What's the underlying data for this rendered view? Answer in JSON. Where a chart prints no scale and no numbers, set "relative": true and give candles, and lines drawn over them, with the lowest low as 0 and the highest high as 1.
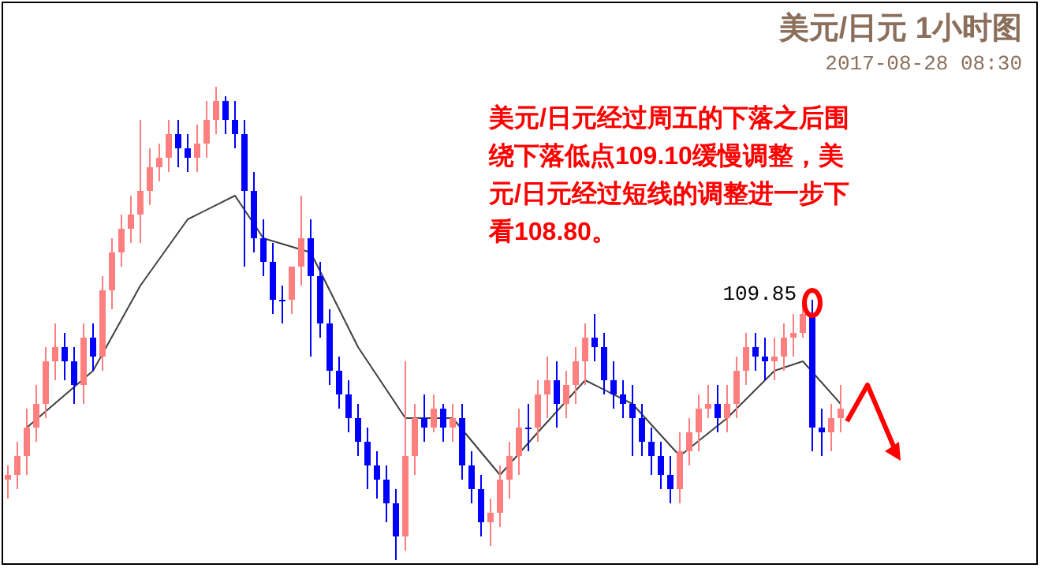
{
  "chart_data": {
    "type": "candlestick",
    "title": "美元/日元 1小时图",
    "subtitle": "2017-08-28 08:30",
    "relative": true,
    "annotations": [
      "美元/日元经过周五的下落之后围绕下落低点109.10缓慢调整，美元/日元经过短线的调整进一步下看108.80。",
      "109.85"
    ],
    "categories": [
      null,
      null,
      null,
      null,
      null,
      null,
      null,
      null,
      null,
      null,
      null,
      null,
      null,
      null,
      null,
      null,
      null,
      null,
      null,
      null,
      null,
      null,
      null,
      null,
      null,
      null,
      null,
      null,
      null,
      null,
      null,
      null,
      null,
      null,
      null,
      null,
      null,
      null,
      null,
      null,
      null,
      null,
      null,
      null,
      null,
      null,
      null,
      null,
      null,
      null,
      null,
      null,
      null,
      null,
      null,
      null,
      null,
      null,
      null,
      null,
      null,
      null,
      null,
      null,
      null,
      null,
      null,
      null,
      null,
      null,
      null,
      null,
      null,
      null,
      null,
      null,
      null,
      null,
      null,
      null,
      null,
      null,
      null,
      null,
      null,
      null,
      null,
      null,
      null
    ],
    "ohlc": [
      [
        0.17,
        0.2,
        0.13,
        0.18
      ],
      [
        0.18,
        0.25,
        0.15,
        0.22
      ],
      [
        0.22,
        0.32,
        0.18,
        0.28
      ],
      [
        0.28,
        0.37,
        0.25,
        0.33
      ],
      [
        0.33,
        0.45,
        0.3,
        0.42
      ],
      [
        0.42,
        0.5,
        0.38,
        0.45
      ],
      [
        0.45,
        0.48,
        0.38,
        0.42
      ],
      [
        0.42,
        0.45,
        0.33,
        0.37
      ],
      [
        0.37,
        0.5,
        0.33,
        0.47
      ],
      [
        0.47,
        0.5,
        0.4,
        0.43
      ],
      [
        0.43,
        0.6,
        0.4,
        0.57
      ],
      [
        0.57,
        0.68,
        0.53,
        0.65
      ],
      [
        0.65,
        0.73,
        0.62,
        0.7
      ],
      [
        0.7,
        0.77,
        0.67,
        0.73
      ],
      [
        0.73,
        0.93,
        0.67,
        0.78
      ],
      [
        0.78,
        0.87,
        0.75,
        0.83
      ],
      [
        0.83,
        0.88,
        0.8,
        0.85
      ],
      [
        0.85,
        0.93,
        0.82,
        0.9
      ],
      [
        0.9,
        0.93,
        0.83,
        0.87
      ],
      [
        0.87,
        0.9,
        0.82,
        0.85
      ],
      [
        0.85,
        0.92,
        0.82,
        0.88
      ],
      [
        0.88,
        0.97,
        0.85,
        0.93
      ],
      [
        0.93,
        1.0,
        0.9,
        0.97
      ],
      [
        0.97,
        0.98,
        0.9,
        0.93
      ],
      [
        0.93,
        0.97,
        0.87,
        0.9
      ],
      [
        0.9,
        0.93,
        0.62,
        0.78
      ],
      [
        0.78,
        0.82,
        0.65,
        0.68
      ],
      [
        0.68,
        0.72,
        0.6,
        0.63
      ],
      [
        0.63,
        0.67,
        0.52,
        0.55
      ],
      [
        0.55,
        0.58,
        0.5,
        0.55
      ],
      [
        0.55,
        0.62,
        0.52,
        0.62
      ],
      [
        0.62,
        0.77,
        0.58,
        0.68
      ],
      [
        0.68,
        0.72,
        0.43,
        0.6
      ],
      [
        0.6,
        0.63,
        0.47,
        0.5
      ],
      [
        0.5,
        0.53,
        0.37,
        0.4
      ],
      [
        0.4,
        0.43,
        0.32,
        0.35
      ],
      [
        0.35,
        0.38,
        0.27,
        0.3
      ],
      [
        0.3,
        0.33,
        0.22,
        0.25
      ],
      [
        0.25,
        0.28,
        0.15,
        0.2
      ],
      [
        0.2,
        0.23,
        0.13,
        0.17
      ],
      [
        0.17,
        0.2,
        0.08,
        0.12
      ],
      [
        0.12,
        0.15,
        0.0,
        0.05
      ],
      [
        0.05,
        0.42,
        0.02,
        0.22
      ],
      [
        0.22,
        0.33,
        0.18,
        0.3
      ],
      [
        0.3,
        0.35,
        0.25,
        0.28
      ],
      [
        0.28,
        0.35,
        0.27,
        0.32
      ],
      [
        0.32,
        0.33,
        0.25,
        0.28
      ],
      [
        0.28,
        0.33,
        0.25,
        0.3
      ],
      [
        0.3,
        0.33,
        0.17,
        0.2
      ],
      [
        0.2,
        0.23,
        0.12,
        0.15
      ],
      [
        0.15,
        0.18,
        0.05,
        0.08
      ],
      [
        0.08,
        0.13,
        0.03,
        0.1
      ],
      [
        0.1,
        0.2,
        0.07,
        0.17
      ],
      [
        0.17,
        0.25,
        0.13,
        0.22
      ],
      [
        0.22,
        0.32,
        0.18,
        0.28
      ],
      [
        0.28,
        0.33,
        0.23,
        0.28
      ],
      [
        0.28,
        0.38,
        0.25,
        0.35
      ],
      [
        0.35,
        0.43,
        0.3,
        0.38
      ],
      [
        0.38,
        0.42,
        0.28,
        0.33
      ],
      [
        0.33,
        0.4,
        0.3,
        0.37
      ],
      [
        0.37,
        0.45,
        0.33,
        0.42
      ],
      [
        0.42,
        0.5,
        0.37,
        0.47
      ],
      [
        0.47,
        0.52,
        0.42,
        0.45
      ],
      [
        0.45,
        0.48,
        0.35,
        0.38
      ],
      [
        0.38,
        0.42,
        0.32,
        0.35
      ],
      [
        0.35,
        0.38,
        0.3,
        0.33
      ],
      [
        0.33,
        0.37,
        0.22,
        0.3
      ],
      [
        0.3,
        0.33,
        0.22,
        0.25
      ],
      [
        0.25,
        0.28,
        0.18,
        0.22
      ],
      [
        0.22,
        0.25,
        0.15,
        0.18
      ],
      [
        0.18,
        0.22,
        0.12,
        0.15
      ],
      [
        0.15,
        0.27,
        0.12,
        0.23
      ],
      [
        0.23,
        0.3,
        0.2,
        0.27
      ],
      [
        0.27,
        0.35,
        0.23,
        0.32
      ],
      [
        0.32,
        0.37,
        0.3,
        0.33
      ],
      [
        0.33,
        0.37,
        0.27,
        0.3
      ],
      [
        0.3,
        0.37,
        0.27,
        0.33
      ],
      [
        0.33,
        0.43,
        0.3,
        0.4
      ],
      [
        0.4,
        0.48,
        0.37,
        0.45
      ],
      [
        0.45,
        0.48,
        0.4,
        0.43
      ],
      [
        0.43,
        0.47,
        0.38,
        0.42
      ],
      [
        0.42,
        0.47,
        0.38,
        0.43
      ],
      [
        0.43,
        0.5,
        0.4,
        0.47
      ],
      [
        0.47,
        0.52,
        0.43,
        0.48
      ],
      [
        0.48,
        0.54,
        0.47,
        0.52
      ],
      [
        0.52,
        0.55,
        0.23,
        0.28
      ],
      [
        0.28,
        0.32,
        0.22,
        0.27
      ],
      [
        0.27,
        0.33,
        0.23,
        0.3
      ],
      [
        0.3,
        0.37,
        0.27,
        0.32
      ]
    ],
    "colors": [
      "#ff7f7f",
      "#ff7f7f",
      "#ff7f7f",
      "#ff7f7f",
      "#ff7f7f",
      "#ff7f7f",
      "#0000ff",
      "#0000ff",
      "#ff7f7f",
      "#0000ff",
      "#ff7f7f",
      "#ff7f7f",
      "#ff7f7f",
      "#ff7f7f",
      "#ff7f7f",
      "#ff7f7f",
      "#ff7f7f",
      "#ff7f7f",
      "#0000ff",
      "#0000ff",
      "#ff7f7f",
      "#ff7f7f",
      "#ff7f7f",
      "#0000ff",
      "#0000ff",
      "#0000ff",
      "#0000ff",
      "#0000ff",
      "#0000ff",
      "#0000ff",
      "#ff7f7f",
      "#ff7f7f",
      "#0000ff",
      "#0000ff",
      "#0000ff",
      "#0000ff",
      "#0000ff",
      "#0000ff",
      "#0000ff",
      "#0000ff",
      "#0000ff",
      "#0000ff",
      "#ff7f7f",
      "#ff7f7f",
      "#0000ff",
      "#ff7f7f",
      "#0000ff",
      "#ff7f7f",
      "#0000ff",
      "#0000ff",
      "#0000ff",
      "#ff7f7f",
      "#ff7f7f",
      "#ff7f7f",
      "#ff7f7f",
      "#0000ff",
      "#ff7f7f",
      "#ff7f7f",
      "#0000ff",
      "#ff7f7f",
      "#ff7f7f",
      "#ff7f7f",
      "#0000ff",
      "#0000ff",
      "#0000ff",
      "#0000ff",
      "#0000ff",
      "#0000ff",
      "#0000ff",
      "#0000ff",
      "#0000ff",
      "#ff7f7f",
      "#ff7f7f",
      "#ff7f7f",
      "#ff7f7f",
      "#0000ff",
      "#ff7f7f",
      "#ff7f7f",
      "#ff7f7f",
      "#0000ff",
      "#0000ff",
      "#ff7f7f",
      "#ff7f7f",
      "#ff7f7f",
      "#ff7f7f",
      "#0000ff",
      "#0000ff",
      "#ff7f7f",
      "#ff7f7f"
    ],
    "series": [
      {
        "type": "line",
        "color": "#404040",
        "values": [
          null,
          null,
          0.28,
          null,
          null,
          null,
          null,
          null,
          null,
          0.4,
          null,
          null,
          null,
          null,
          0.58,
          null,
          null,
          null,
          null,
          0.72,
          null,
          null,
          null,
          null,
          0.77,
          null,
          null,
          0.68,
          null,
          null,
          null,
          null,
          0.65,
          null,
          null,
          null,
          null,
          0.45,
          null,
          null,
          null,
          null,
          0.3,
          null,
          null,
          null,
          null,
          0.3,
          null,
          null,
          null,
          null,
          0.18,
          null,
          null,
          null,
          0.27,
          null,
          null,
          null,
          null,
          0.38,
          null,
          null,
          null,
          null,
          0.33,
          null,
          null,
          null,
          null,
          0.22,
          null,
          null,
          null,
          null,
          0.3,
          null,
          null,
          null,
          null,
          0.4,
          null,
          null,
          0.42,
          null,
          null,
          null,
          0.33
        ]
      }
    ]
  }
}
